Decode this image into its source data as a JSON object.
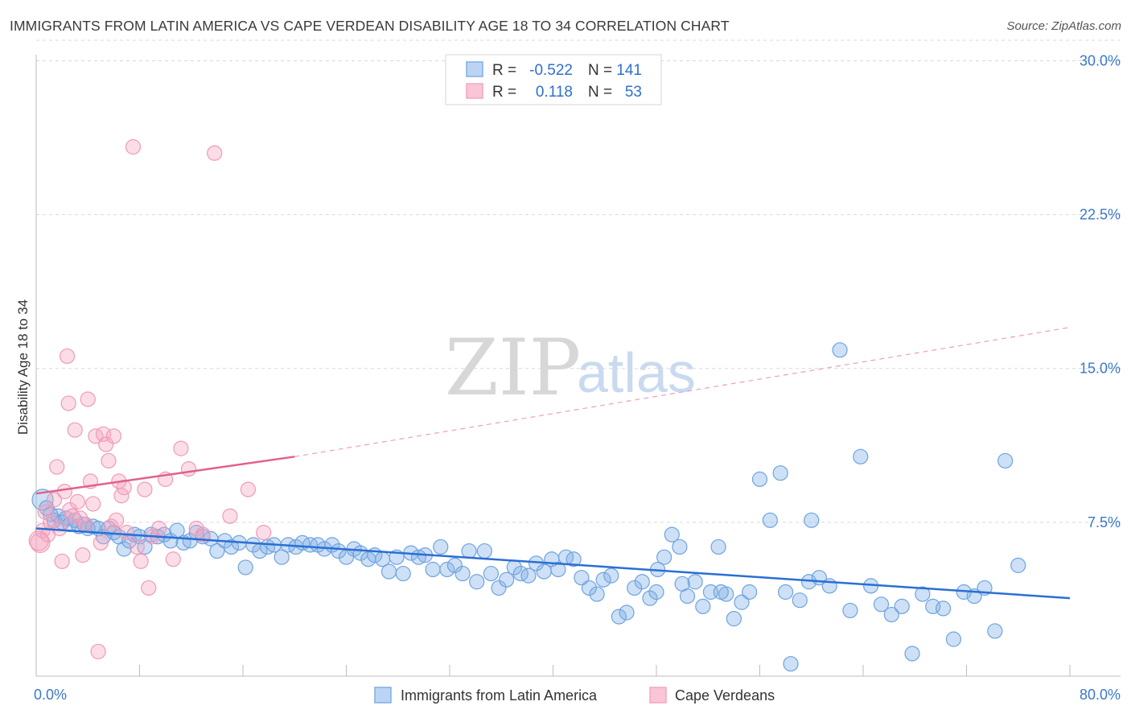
{
  "title": "IMMIGRANTS FROM LATIN AMERICA VS CAPE VERDEAN DISABILITY AGE 18 TO 34 CORRELATION CHART",
  "source": "Source: ZipAtlas.com",
  "watermark": {
    "zip": "ZIP",
    "atlas": "atlas"
  },
  "chart_data": {
    "type": "scatter",
    "ylabel": "Disability Age 18 to 34",
    "xlabel": "",
    "xlim": [
      0,
      80
    ],
    "ylim": [
      0,
      31
    ],
    "y_ticks": [
      7.5,
      15.0,
      22.5,
      30.0
    ],
    "y_tick_labels": [
      "7.5%",
      "15.0%",
      "22.5%",
      "30.0%"
    ],
    "x_tick_labels": [
      "0.0%",
      "80.0%"
    ],
    "grid": "horizontal dashed",
    "legend_position": "top-center",
    "stats": [
      {
        "r_label": "R =",
        "r": "-0.522",
        "n_label": "N =",
        "n": "141"
      },
      {
        "r_label": "R =",
        "r": " 0.118",
        "n_label": "N =",
        "n": "53"
      }
    ],
    "series": [
      {
        "name": "Immigrants from Latin America",
        "color": "#7eaee6",
        "line_color": "#2a6fd4",
        "trend": {
          "x0": 0,
          "y0": 7.2,
          "x1": 80,
          "y1": 3.8,
          "dashed": false
        },
        "points": [
          [
            0.5,
            8.6
          ],
          [
            0.8,
            8.2
          ],
          [
            1.1,
            7.9
          ],
          [
            1.4,
            7.6
          ],
          [
            1.7,
            7.8
          ],
          [
            2.0,
            7.5
          ],
          [
            2.3,
            7.7
          ],
          [
            2.6,
            7.4
          ],
          [
            3.0,
            7.6
          ],
          [
            3.3,
            7.3
          ],
          [
            3.7,
            7.4
          ],
          [
            4.0,
            7.2
          ],
          [
            4.4,
            7.3
          ],
          [
            4.8,
            7.2
          ],
          [
            5.2,
            6.8
          ],
          [
            5.6,
            7.2
          ],
          [
            6.0,
            7.0
          ],
          [
            6.4,
            6.8
          ],
          [
            6.8,
            6.2
          ],
          [
            7.2,
            6.6
          ],
          [
            7.6,
            6.9
          ],
          [
            8.0,
            6.8
          ],
          [
            8.4,
            6.3
          ],
          [
            8.9,
            6.9
          ],
          [
            9.4,
            6.8
          ],
          [
            9.9,
            6.9
          ],
          [
            10.4,
            6.6
          ],
          [
            10.9,
            7.1
          ],
          [
            11.4,
            6.5
          ],
          [
            11.9,
            6.6
          ],
          [
            12.4,
            7.0
          ],
          [
            12.9,
            6.8
          ],
          [
            13.5,
            6.7
          ],
          [
            14.0,
            6.1
          ],
          [
            14.6,
            6.6
          ],
          [
            15.1,
            6.3
          ],
          [
            15.7,
            6.5
          ],
          [
            16.2,
            5.3
          ],
          [
            16.8,
            6.4
          ],
          [
            17.3,
            6.1
          ],
          [
            17.9,
            6.3
          ],
          [
            18.4,
            6.4
          ],
          [
            19.0,
            5.8
          ],
          [
            19.5,
            6.4
          ],
          [
            20.1,
            6.3
          ],
          [
            20.6,
            6.5
          ],
          [
            21.2,
            6.4
          ],
          [
            21.8,
            6.4
          ],
          [
            22.3,
            6.2
          ],
          [
            22.9,
            6.4
          ],
          [
            23.4,
            6.1
          ],
          [
            24.0,
            5.8
          ],
          [
            24.6,
            6.2
          ],
          [
            25.1,
            6.0
          ],
          [
            25.7,
            5.7
          ],
          [
            26.2,
            5.9
          ],
          [
            26.8,
            5.7
          ],
          [
            27.3,
            5.1
          ],
          [
            27.9,
            5.8
          ],
          [
            28.4,
            5.0
          ],
          [
            29.0,
            6.0
          ],
          [
            29.6,
            5.8
          ],
          [
            30.1,
            5.9
          ],
          [
            30.7,
            5.2
          ],
          [
            31.3,
            6.3
          ],
          [
            31.8,
            5.2
          ],
          [
            32.4,
            5.4
          ],
          [
            33.0,
            5.0
          ],
          [
            33.5,
            6.1
          ],
          [
            34.1,
            4.6
          ],
          [
            34.7,
            6.1
          ],
          [
            35.2,
            5.0
          ],
          [
            35.8,
            4.3
          ],
          [
            36.4,
            4.7
          ],
          [
            37.0,
            5.3
          ],
          [
            37.5,
            5.0
          ],
          [
            38.1,
            4.9
          ],
          [
            38.7,
            5.5
          ],
          [
            39.3,
            5.1
          ],
          [
            39.9,
            5.7
          ],
          [
            40.4,
            5.2
          ],
          [
            41.0,
            5.8
          ],
          [
            41.6,
            5.7
          ],
          [
            42.2,
            4.8
          ],
          [
            42.8,
            4.3
          ],
          [
            43.4,
            4.0
          ],
          [
            43.9,
            4.7
          ],
          [
            44.5,
            4.9
          ],
          [
            45.1,
            2.9
          ],
          [
            45.7,
            3.1
          ],
          [
            46.3,
            4.3
          ],
          [
            46.9,
            4.6
          ],
          [
            47.5,
            3.8
          ],
          [
            48.1,
            5.2
          ],
          [
            48.6,
            5.8
          ],
          [
            49.2,
            6.9
          ],
          [
            49.8,
            6.3
          ],
          [
            50.4,
            3.9
          ],
          [
            51.0,
            4.6
          ],
          [
            51.6,
            3.4
          ],
          [
            52.2,
            4.1
          ],
          [
            52.8,
            6.3
          ],
          [
            53.4,
            4.0
          ],
          [
            54.0,
            2.8
          ],
          [
            54.6,
            3.6
          ],
          [
            55.2,
            4.1
          ],
          [
            56.0,
            9.6
          ],
          [
            56.8,
            7.6
          ],
          [
            57.6,
            9.9
          ],
          [
            58.4,
            0.6
          ],
          [
            59.1,
            3.7
          ],
          [
            59.8,
            4.6
          ],
          [
            60.6,
            4.8
          ],
          [
            61.4,
            4.4
          ],
          [
            62.2,
            15.9
          ],
          [
            63.0,
            3.2
          ],
          [
            63.8,
            10.7
          ],
          [
            64.6,
            4.4
          ],
          [
            65.4,
            3.5
          ],
          [
            66.2,
            3.0
          ],
          [
            67.0,
            3.4
          ],
          [
            67.8,
            1.1
          ],
          [
            68.6,
            4.0
          ],
          [
            69.4,
            3.4
          ],
          [
            70.2,
            3.3
          ],
          [
            71.0,
            1.8
          ],
          [
            71.8,
            4.1
          ],
          [
            72.6,
            3.9
          ],
          [
            73.4,
            4.3
          ],
          [
            74.2,
            2.2
          ],
          [
            75.0,
            10.5
          ],
          [
            76.0,
            5.4
          ],
          [
            58.0,
            4.1
          ],
          [
            60.0,
            7.6
          ],
          [
            53.0,
            4.1
          ],
          [
            48.0,
            4.1
          ],
          [
            50.0,
            4.5
          ]
        ]
      },
      {
        "name": "Cape Verdeans",
        "color": "#f5a6c0",
        "line_color": "#e0608c",
        "trend": {
          "x0": 0,
          "y0": 8.9,
          "x1": 20,
          "y1": 10.7,
          "dashed_to": {
            "x": 80,
            "y": 17.0
          }
        },
        "points": [
          [
            0.3,
            6.5
          ],
          [
            0.5,
            7.1
          ],
          [
            0.7,
            8.0
          ],
          [
            0.9,
            6.9
          ],
          [
            1.1,
            7.5
          ],
          [
            1.4,
            8.6
          ],
          [
            1.6,
            10.2
          ],
          [
            1.8,
            7.2
          ],
          [
            2.0,
            5.6
          ],
          [
            2.2,
            9.0
          ],
          [
            2.4,
            15.6
          ],
          [
            2.5,
            13.3
          ],
          [
            2.6,
            8.1
          ],
          [
            2.8,
            7.8
          ],
          [
            3.0,
            12.0
          ],
          [
            3.2,
            8.5
          ],
          [
            3.4,
            7.7
          ],
          [
            3.6,
            5.9
          ],
          [
            3.8,
            7.4
          ],
          [
            4.0,
            13.5
          ],
          [
            4.2,
            9.5
          ],
          [
            4.4,
            8.4
          ],
          [
            4.6,
            11.7
          ],
          [
            4.8,
            1.2
          ],
          [
            5.0,
            6.5
          ],
          [
            5.2,
            11.8
          ],
          [
            5.4,
            11.3
          ],
          [
            5.6,
            10.5
          ],
          [
            5.8,
            7.3
          ],
          [
            6.0,
            11.7
          ],
          [
            6.2,
            7.6
          ],
          [
            6.4,
            9.5
          ],
          [
            6.6,
            8.8
          ],
          [
            6.8,
            9.2
          ],
          [
            7.0,
            7.0
          ],
          [
            7.5,
            25.8
          ],
          [
            7.8,
            6.3
          ],
          [
            8.1,
            5.6
          ],
          [
            8.4,
            9.1
          ],
          [
            8.7,
            4.3
          ],
          [
            9.0,
            6.8
          ],
          [
            9.5,
            7.2
          ],
          [
            10.0,
            9.6
          ],
          [
            10.6,
            5.7
          ],
          [
            11.2,
            11.1
          ],
          [
            11.8,
            10.1
          ],
          [
            12.4,
            7.2
          ],
          [
            12.9,
            6.9
          ],
          [
            13.8,
            25.5
          ],
          [
            15.0,
            7.8
          ],
          [
            16.4,
            9.1
          ],
          [
            17.6,
            7.0
          ],
          [
            0.2,
            6.6
          ]
        ]
      }
    ]
  },
  "bottom_legend": [
    "Immigrants from Latin America",
    "Cape Verdeans"
  ]
}
